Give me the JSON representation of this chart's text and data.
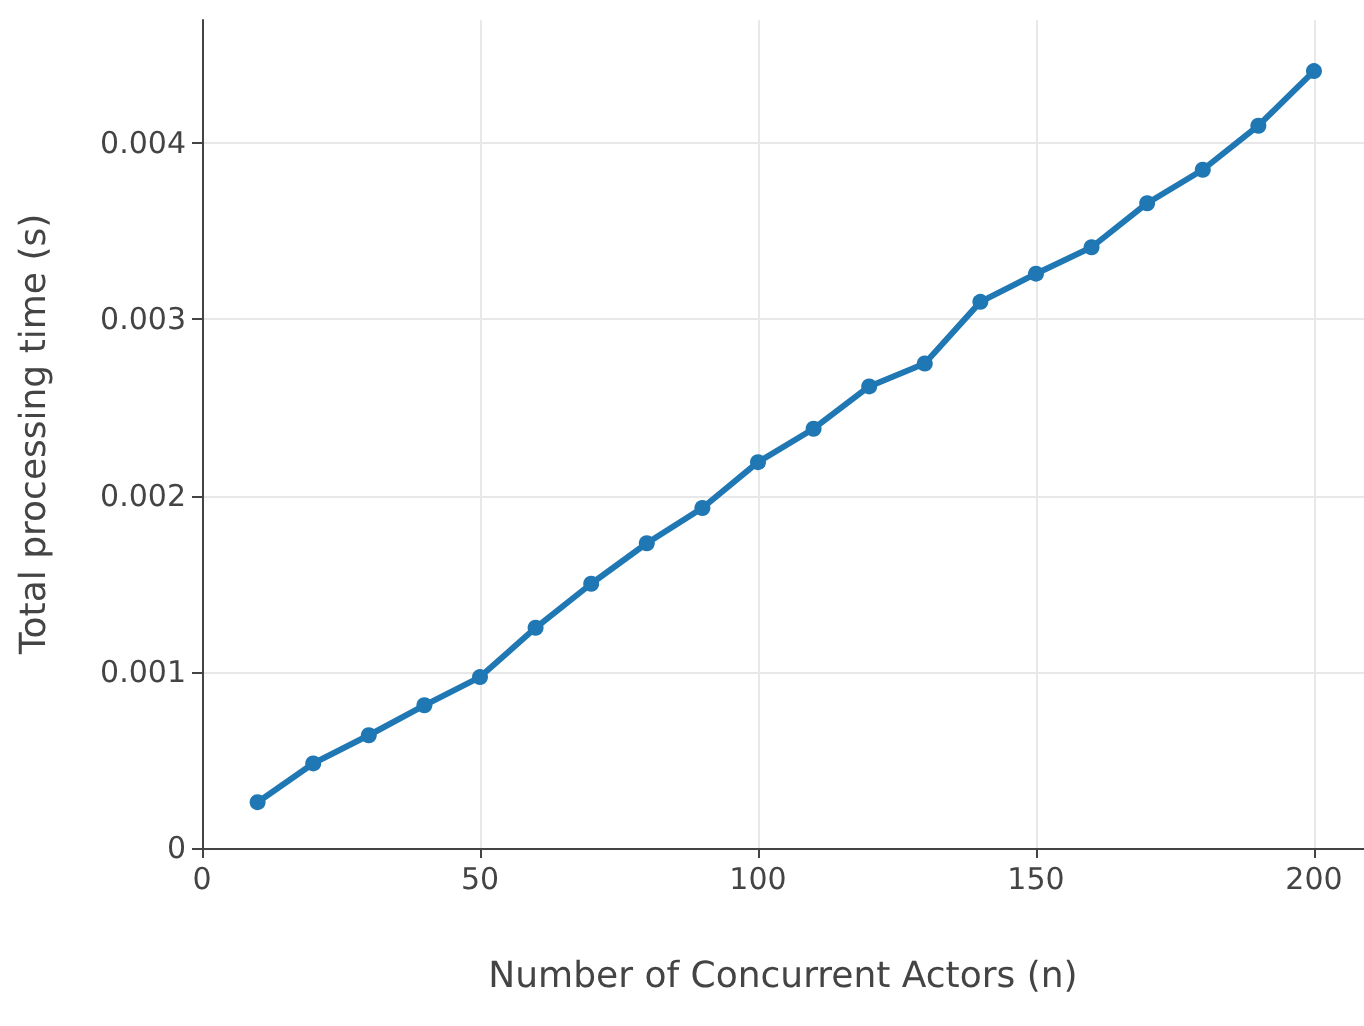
{
  "chart_data": {
    "type": "line",
    "xlabel": "Number of Concurrent Actors (n)",
    "ylabel": "Total processing time (s)",
    "x": [
      10,
      20,
      30,
      40,
      50,
      60,
      70,
      80,
      90,
      100,
      110,
      120,
      130,
      140,
      150,
      160,
      170,
      180,
      190,
      200
    ],
    "series": [
      {
        "color": "#1f77b4",
        "values": [
          0.00026,
          0.00048,
          0.00064,
          0.00081,
          0.00097,
          0.00125,
          0.0015,
          0.00173,
          0.00193,
          0.00219,
          0.00238,
          0.00262,
          0.00275,
          0.0031,
          0.00326,
          0.00341,
          0.00366,
          0.00385,
          0.0041,
          0.00441
        ]
      }
    ],
    "xlim": [
      0,
      209
    ],
    "xticks": [
      0,
      50,
      100,
      150,
      200
    ],
    "ylim": [
      0,
      0.0047
    ],
    "yticks": [
      0,
      0.001,
      0.002,
      0.003,
      0.004
    ],
    "grid": true,
    "marker": "circle",
    "line_style": "solid"
  }
}
